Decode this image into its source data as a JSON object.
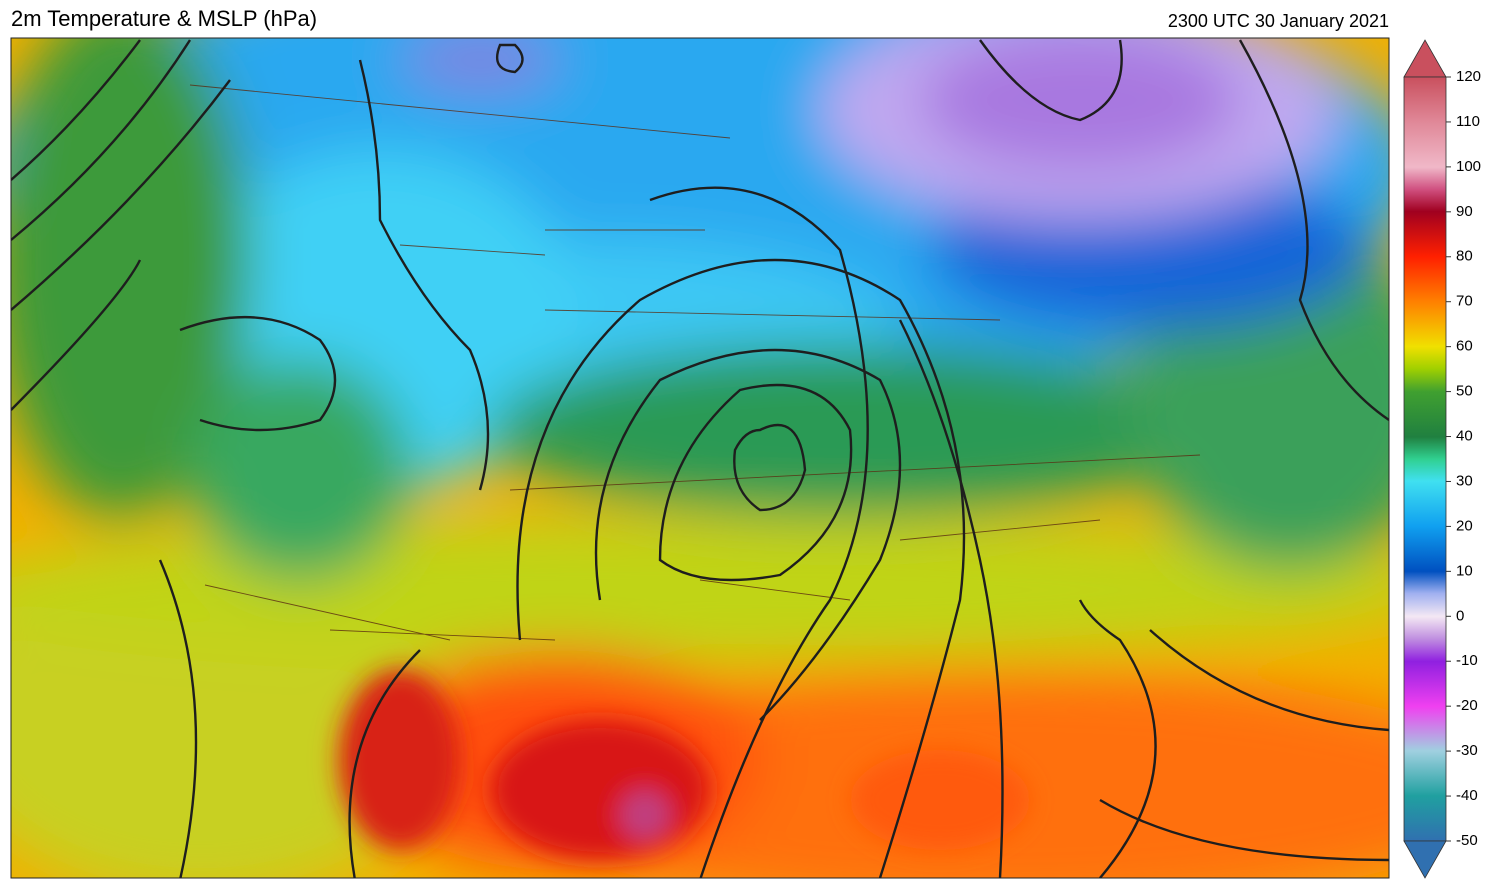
{
  "header": {
    "title": "2m Temperature & MSLP (hPa)",
    "timestamp": "2300 UTC 30 January 2021"
  },
  "colorbar": {
    "range": [
      -50,
      120
    ],
    "ticks": [
      120,
      110,
      100,
      90,
      80,
      70,
      60,
      50,
      40,
      30,
      20,
      10,
      0,
      -10,
      -20,
      -30,
      -40,
      -50
    ]
  }
}
